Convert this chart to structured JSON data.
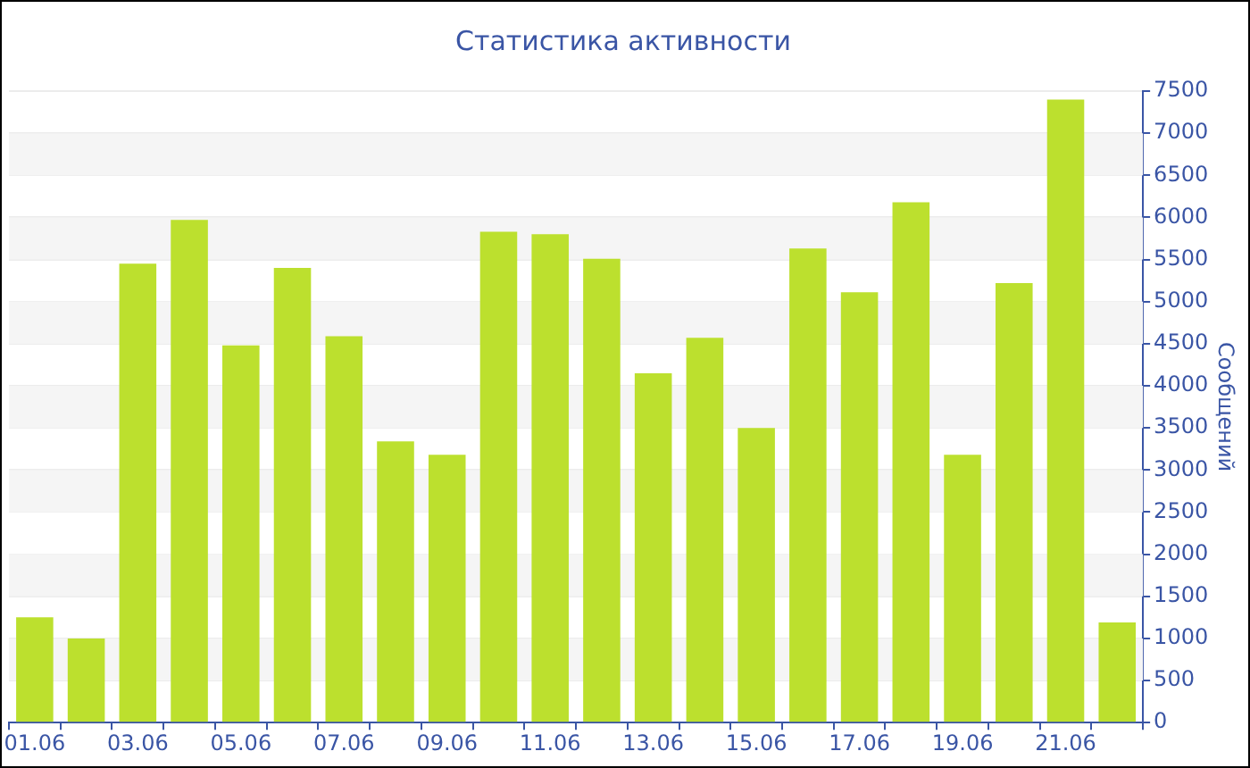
{
  "chart_data": {
    "type": "bar",
    "title": "Статистика активности",
    "ylabel": "Сообщений",
    "categories": [
      "01.06",
      null,
      "03.06",
      null,
      "05.06",
      null,
      "07.06",
      null,
      "09.06",
      null,
      "11.06",
      null,
      "13.06",
      null,
      "15.06",
      null,
      "17.06",
      null,
      "19.06",
      null,
      "21.06",
      null
    ],
    "values": [
      1250,
      1000,
      5450,
      5970,
      4480,
      5400,
      4590,
      3340,
      3180,
      5830,
      5800,
      5510,
      4150,
      4570,
      3500,
      5630,
      5110,
      6180,
      3180,
      5220,
      7400,
      1190
    ],
    "color": "#bce02e",
    "ylim": [
      0,
      7500
    ],
    "yticks": [
      0,
      500,
      1000,
      1500,
      2000,
      2500,
      3000,
      3500,
      4000,
      4500,
      5000,
      5500,
      6000,
      6500,
      7000,
      7500
    ],
    "grid": true,
    "legend": false
  }
}
